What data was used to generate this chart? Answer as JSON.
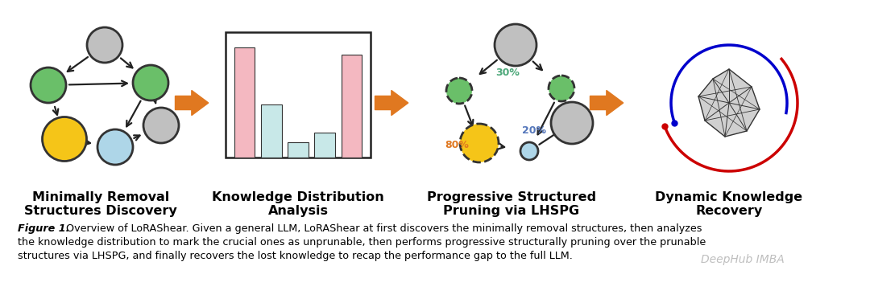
{
  "bg_color": "#ffffff",
  "fig_width": 10.8,
  "fig_height": 3.82,
  "caption_line2": "the knowledge distribution to mark the crucial ones as unprunable, then performs progressive structurally pruning over the prunable",
  "caption_line3": "structures via LHSPG, and finally recovers the lost knowledge to recap the performance gap to the full LLM.",
  "watermark": "DeepHub IMBA",
  "label1": "Minimally Removal\nStructures Discovery",
  "label2": "Knowledge Distribution\nAnalysis",
  "label3": "Progressive Structured\nPruning via LHSPG",
  "label4": "Dynamic Knowledge\nRecovery",
  "pct_30": "30%",
  "pct_20": "20%",
  "pct_80": "80%",
  "color_green": "#6abf69",
  "color_yellow": "#f5c518",
  "color_blue_light": "#aed6e8",
  "color_gray_node": "#c0c0c0",
  "color_gray_dark": "#909090",
  "color_pink": "#f4b8c1",
  "color_cyan_light": "#c8e8e8",
  "color_arrow_orange": "#e07820",
  "color_red_arc": "#cc0000",
  "color_blue_arc": "#0000cc",
  "color_teal_text": "#4da87a",
  "color_blue_text": "#5577bb",
  "color_orange_text": "#e07820"
}
